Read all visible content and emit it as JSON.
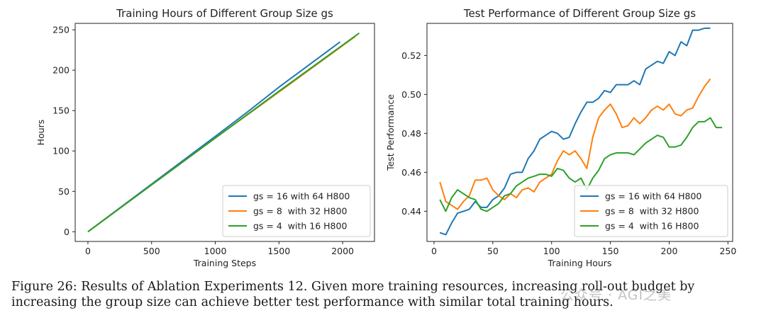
{
  "caption": "Figure 26: Results of Ablation Experiments 12. Given more training resources, increasing roll-out budget by increasing the group size can achieve better test performance with similar total training hours.",
  "watermark": "公众号 · AGI之美",
  "colors": {
    "blue": "#1f77b4",
    "orange": "#ff7f0e",
    "green": "#2ca02c"
  },
  "chart_data": [
    {
      "type": "line",
      "title": "Training Hours of Different Group Size gs",
      "xlabel": "Training Steps",
      "ylabel": "Hours",
      "xlim": [
        -100,
        2250
      ],
      "ylim": [
        -12,
        258
      ],
      "xticks": [
        0,
        500,
        1000,
        1500,
        2000
      ],
      "yticks": [
        0,
        50,
        100,
        150,
        200,
        250
      ],
      "legend": "bottom-right",
      "series": [
        {
          "name": "gs = 16 with 64 H800",
          "color": "blue",
          "x": [
            0,
            500,
            1000,
            1250,
            1500,
            1980
          ],
          "y": [
            0,
            59,
            118,
            148,
            179,
            235
          ]
        },
        {
          "name": "gs = 8  with 32 H800",
          "color": "orange",
          "x": [
            0,
            500,
            1000,
            1500,
            2100
          ],
          "y": [
            0,
            58,
            116,
            173,
            242
          ]
        },
        {
          "name": "gs = 4  with 16 H800",
          "color": "green",
          "x": [
            0,
            500,
            1000,
            1500,
            2130
          ],
          "y": [
            0,
            58,
            116,
            174,
            246
          ]
        }
      ]
    },
    {
      "type": "line",
      "title": "Test Performance of Different Group Size gs",
      "xlabel": "Training Hours",
      "ylabel": "Test Performance",
      "xlim": [
        -6,
        254
      ],
      "ylim": [
        0.4245,
        0.5365
      ],
      "xticks": [
        0,
        50,
        100,
        150,
        200,
        250
      ],
      "yticks": [
        0.44,
        0.46,
        0.48,
        0.5,
        0.52
      ],
      "legend": "bottom-right",
      "series": [
        {
          "name": "gs = 16 with 64 H800",
          "color": "blue",
          "x": [
            5,
            10,
            15,
            20,
            25,
            30,
            35,
            40,
            45,
            50,
            55,
            60,
            65,
            70,
            75,
            80,
            85,
            90,
            95,
            100,
            105,
            110,
            115,
            120,
            125,
            130,
            135,
            140,
            145,
            150,
            155,
            160,
            165,
            170,
            175,
            180,
            185,
            190,
            195,
            200,
            205,
            210,
            215,
            220,
            225,
            230,
            235
          ],
          "y": [
            0.429,
            0.428,
            0.434,
            0.439,
            0.44,
            0.441,
            0.445,
            0.442,
            0.442,
            0.446,
            0.448,
            0.452,
            0.459,
            0.46,
            0.46,
            0.467,
            0.471,
            0.477,
            0.479,
            0.481,
            0.48,
            0.477,
            0.478,
            0.485,
            0.491,
            0.496,
            0.496,
            0.498,
            0.502,
            0.501,
            0.505,
            0.505,
            0.505,
            0.507,
            0.505,
            0.513,
            0.515,
            0.517,
            0.516,
            0.522,
            0.52,
            0.527,
            0.525,
            0.533,
            0.533,
            0.534,
            0.534
          ]
        },
        {
          "name": "gs = 8  with 32 H800",
          "color": "orange",
          "x": [
            5,
            10,
            15,
            20,
            25,
            30,
            35,
            40,
            45,
            50,
            55,
            60,
            65,
            70,
            75,
            80,
            85,
            90,
            95,
            100,
            105,
            110,
            115,
            120,
            125,
            130,
            135,
            140,
            145,
            150,
            155,
            160,
            165,
            170,
            175,
            180,
            185,
            190,
            195,
            200,
            205,
            210,
            215,
            220,
            225,
            230,
            235
          ],
          "y": [
            0.455,
            0.445,
            0.443,
            0.441,
            0.445,
            0.448,
            0.456,
            0.456,
            0.457,
            0.451,
            0.448,
            0.446,
            0.449,
            0.447,
            0.451,
            0.452,
            0.45,
            0.455,
            0.457,
            0.459,
            0.466,
            0.471,
            0.469,
            0.471,
            0.467,
            0.462,
            0.478,
            0.488,
            0.492,
            0.495,
            0.49,
            0.483,
            0.484,
            0.488,
            0.485,
            0.488,
            0.492,
            0.494,
            0.492,
            0.495,
            0.49,
            0.489,
            0.492,
            0.493,
            0.499,
            0.504,
            0.508
          ]
        },
        {
          "name": "gs = 4  with 16 H800",
          "color": "green",
          "x": [
            5,
            10,
            15,
            20,
            25,
            30,
            35,
            40,
            45,
            50,
            55,
            60,
            65,
            70,
            75,
            80,
            85,
            90,
            95,
            100,
            105,
            110,
            115,
            120,
            125,
            130,
            135,
            140,
            145,
            150,
            155,
            160,
            165,
            170,
            175,
            180,
            185,
            190,
            195,
            200,
            205,
            210,
            215,
            220,
            225,
            230,
            235,
            240,
            245
          ],
          "y": [
            0.446,
            0.44,
            0.447,
            0.451,
            0.449,
            0.447,
            0.446,
            0.441,
            0.44,
            0.442,
            0.444,
            0.448,
            0.449,
            0.453,
            0.455,
            0.457,
            0.458,
            0.459,
            0.459,
            0.458,
            0.462,
            0.461,
            0.457,
            0.455,
            0.457,
            0.451,
            0.457,
            0.461,
            0.467,
            0.469,
            0.47,
            0.47,
            0.47,
            0.469,
            0.472,
            0.475,
            0.477,
            0.479,
            0.478,
            0.473,
            0.473,
            0.474,
            0.478,
            0.483,
            0.486,
            0.486,
            0.488,
            0.483,
            0.483
          ]
        }
      ]
    }
  ]
}
